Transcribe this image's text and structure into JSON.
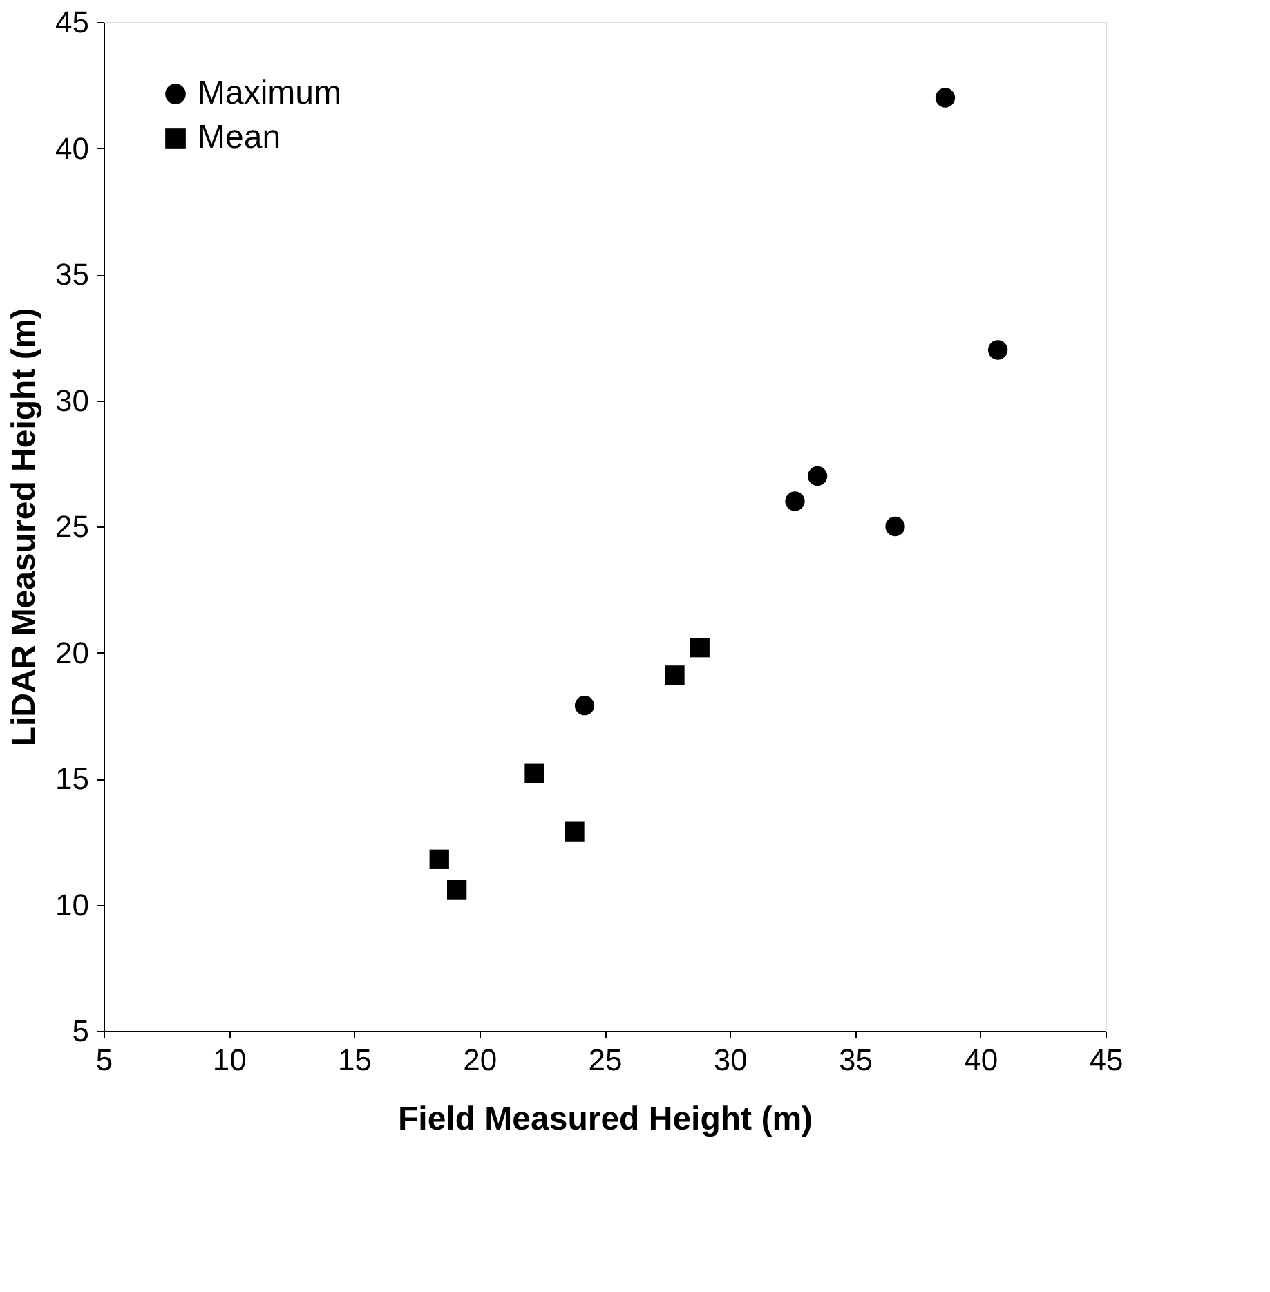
{
  "chart_data": {
    "type": "scatter",
    "xlabel": "Field Measured Height (m)",
    "ylabel": "LiDAR Measured Height (m)",
    "xlim": [
      5,
      45
    ],
    "xticks": [
      5,
      10,
      15,
      20,
      25,
      30,
      35,
      40,
      45
    ],
    "ylim": [
      5,
      45
    ],
    "yticks": [
      5,
      10,
      15,
      20,
      25,
      30,
      35,
      40,
      45
    ],
    "grid": false,
    "legend": "top left",
    "series": [
      {
        "name": "Maximum",
        "color": "#000000",
        "marker": "circle",
        "x": [
          38.6,
          40.7,
          33.5,
          32.6,
          36.6,
          24.2
        ],
        "values": [
          42.0,
          32.0,
          27.0,
          26.0,
          25.0,
          17.9
        ]
      },
      {
        "name": "Mean",
        "color": "#000000",
        "marker": "square",
        "x": [
          18.4,
          19.1,
          22.2,
          23.8,
          27.8,
          28.8
        ],
        "values": [
          11.8,
          10.6,
          15.2,
          12.9,
          19.1,
          20.2
        ]
      }
    ]
  }
}
